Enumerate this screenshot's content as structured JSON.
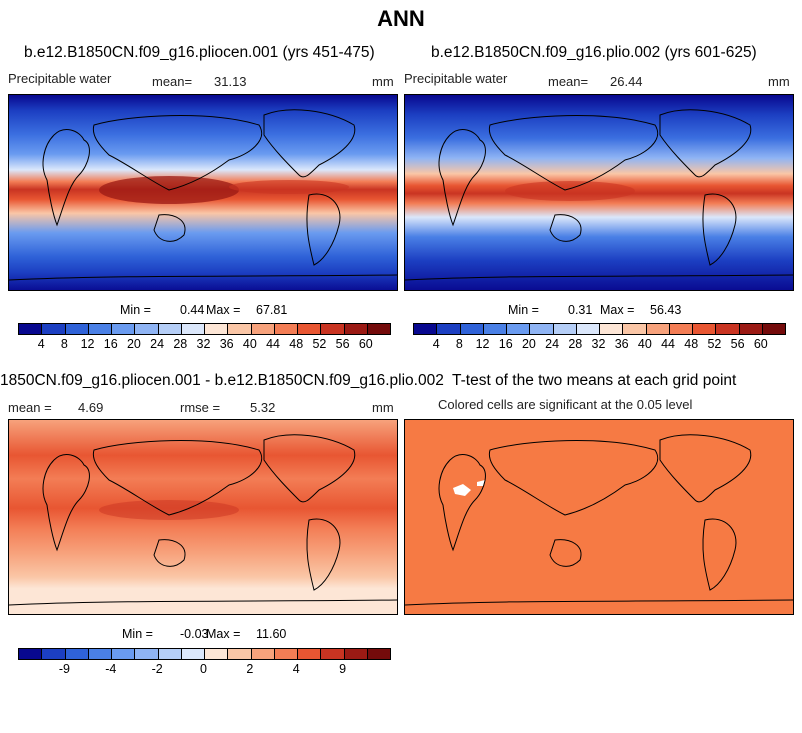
{
  "title": "ANN",
  "panels": {
    "top_left": {
      "title": "b.e12.B1850CN.f09_g16.pliocen.001 (yrs 451-475)",
      "variable": "Precipitable water",
      "mean_label": "mean=",
      "mean_value": "31.13",
      "units": "mm",
      "min_label": "Min =",
      "min_value": "0.44",
      "max_label": "Max =",
      "max_value": "67.81"
    },
    "top_right": {
      "title": "b.e12.B1850CN.f09_g16.plio.002 (yrs 601-625)",
      "variable": "Precipitable water",
      "mean_label": "mean=",
      "mean_value": "26.44",
      "units": "mm",
      "min_label": "Min =",
      "min_value": "0.31",
      "max_label": "Max =",
      "max_value": "56.43"
    },
    "bottom_left": {
      "title": "1850CN.f09_g16.pliocen.001 - b.e12.B1850CN.f09_g16.plio.002",
      "mean_label": "mean =",
      "mean_value": "4.69",
      "rmse_label": "rmse =",
      "rmse_value": "5.32",
      "units": "mm",
      "min_label": "Min =",
      "min_value": "-0.03",
      "max_label": "Max =",
      "max_value": "11.60"
    },
    "bottom_right": {
      "title": "T-test of the two means at each grid point",
      "subtitle": "Colored cells are significant at the 0.05 level"
    }
  },
  "colorbars": {
    "abs_ticks": [
      "4",
      "8",
      "12",
      "16",
      "20",
      "24",
      "28",
      "32",
      "36",
      "40",
      "44",
      "48",
      "52",
      "56",
      "60"
    ],
    "diff_ticks": [
      "-9",
      "-4",
      "-2",
      "0",
      "2",
      "4",
      "9"
    ],
    "colors": [
      "#08088f",
      "#1c3fc2",
      "#2f62d8",
      "#4a80e6",
      "#6a9bf0",
      "#8fb4f4",
      "#b5cef7",
      "#dbe7fb",
      "#fde6d6",
      "#fac6a6",
      "#f7a27c",
      "#f37d55",
      "#e85632",
      "#c93422",
      "#9b1a14",
      "#740b0b"
    ]
  },
  "colors": {
    "ttest_fill": "#f67a44",
    "diff_base": "#ee7a4c"
  }
}
